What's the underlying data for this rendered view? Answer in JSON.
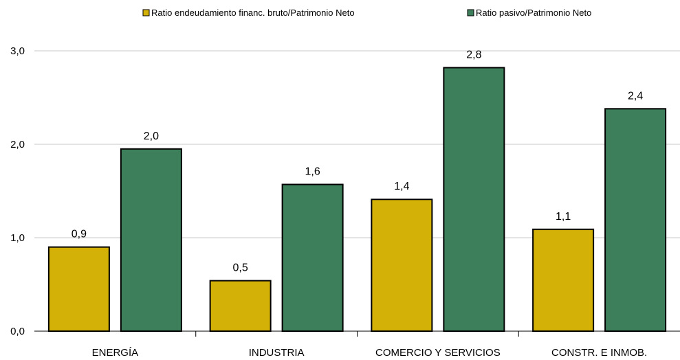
{
  "chart_data": {
    "type": "bar",
    "categories": [
      "ENERGÍA",
      "INDUSTRIA",
      "COMERCIO Y SERVICIOS",
      "CONSTR. E INMOB."
    ],
    "series": [
      {
        "name": "Ratio endeudamiento financ. bruto/Patrimonio Neto",
        "color": "#d4b106",
        "values": [
          0.9,
          0.54,
          1.41,
          1.09
        ],
        "labels": [
          "0,9",
          "0,5",
          "1,4",
          "1,1"
        ]
      },
      {
        "name": "Ratio pasivo/Patrimonio Neto",
        "color": "#3e7f5b",
        "values": [
          1.95,
          1.57,
          2.82,
          2.38
        ],
        "labels": [
          "2,0",
          "1,6",
          "2,8",
          "2,4"
        ]
      }
    ],
    "ylim": [
      0,
      3
    ],
    "yticks": [
      0,
      1,
      2,
      3
    ],
    "ytick_labels": [
      "0,0",
      "1,0",
      "2,0",
      "3,0"
    ],
    "grid": true,
    "legend_position": "top"
  }
}
